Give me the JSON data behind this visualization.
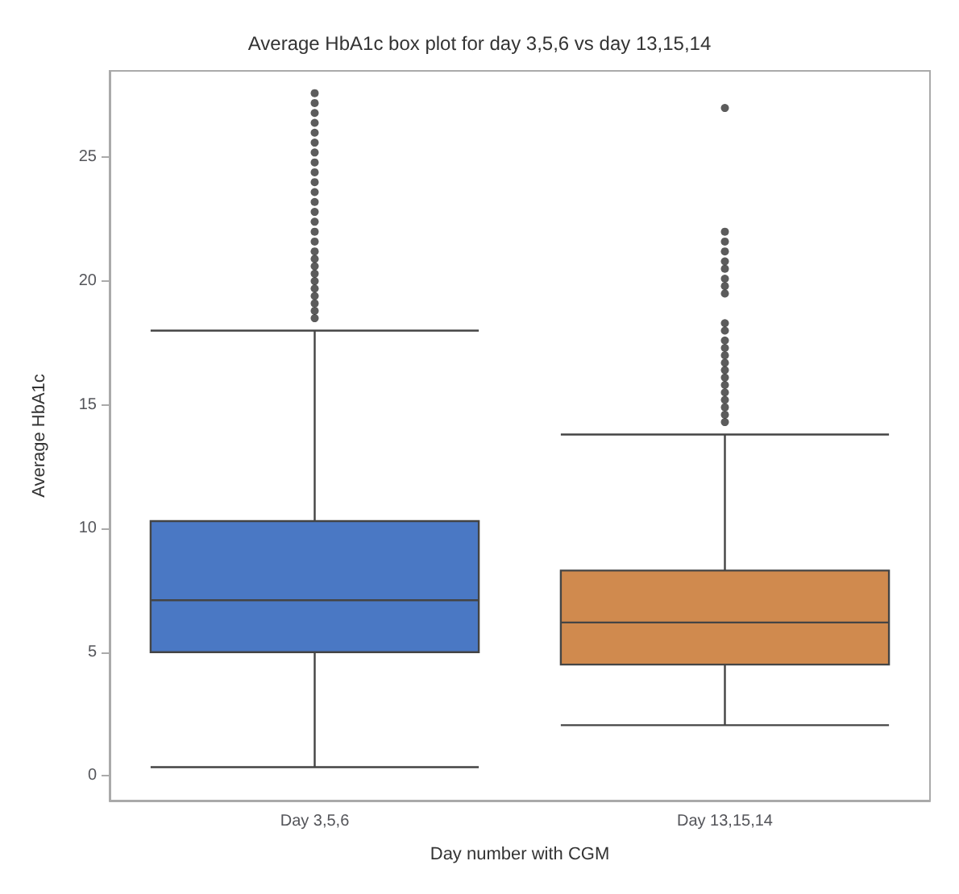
{
  "chart_data": {
    "type": "box",
    "title": "Average HbA1c box plot for day 3,5,6 vs day 13,15,14",
    "xlabel": "Day number with CGM",
    "ylabel": "Average HbA1c",
    "categories": [
      "Day 3,5,6",
      "Day 13,15,14"
    ],
    "ylim": [
      -1,
      28.5
    ],
    "yticks": [
      0,
      5,
      10,
      15,
      20,
      25
    ],
    "grid": false,
    "series": [
      {
        "colors": [
          "#4a78c4",
          "#d08a4e"
        ],
        "boxes": [
          {
            "low": 0.35,
            "q1": 5.0,
            "median": 7.1,
            "q3": 10.3,
            "high": 18.0,
            "outliers": [
              18.5,
              18.8,
              19.1,
              19.4,
              19.7,
              20.0,
              20.3,
              20.6,
              20.9,
              21.2,
              21.6,
              22.0,
              22.4,
              22.8,
              23.2,
              23.6,
              24.0,
              24.4,
              24.8,
              25.2,
              25.6,
              26.0,
              26.4,
              26.8,
              27.2,
              27.6
            ]
          },
          {
            "low": 2.05,
            "q1": 4.5,
            "median": 6.2,
            "q3": 8.3,
            "high": 13.8,
            "outliers": [
              14.3,
              14.6,
              14.9,
              15.2,
              15.5,
              15.8,
              16.1,
              16.4,
              16.7,
              17.0,
              17.3,
              17.6,
              18.0,
              18.3,
              19.5,
              19.8,
              20.1,
              20.5,
              20.8,
              21.2,
              21.6,
              22.0,
              27.0
            ]
          }
        ]
      }
    ]
  }
}
